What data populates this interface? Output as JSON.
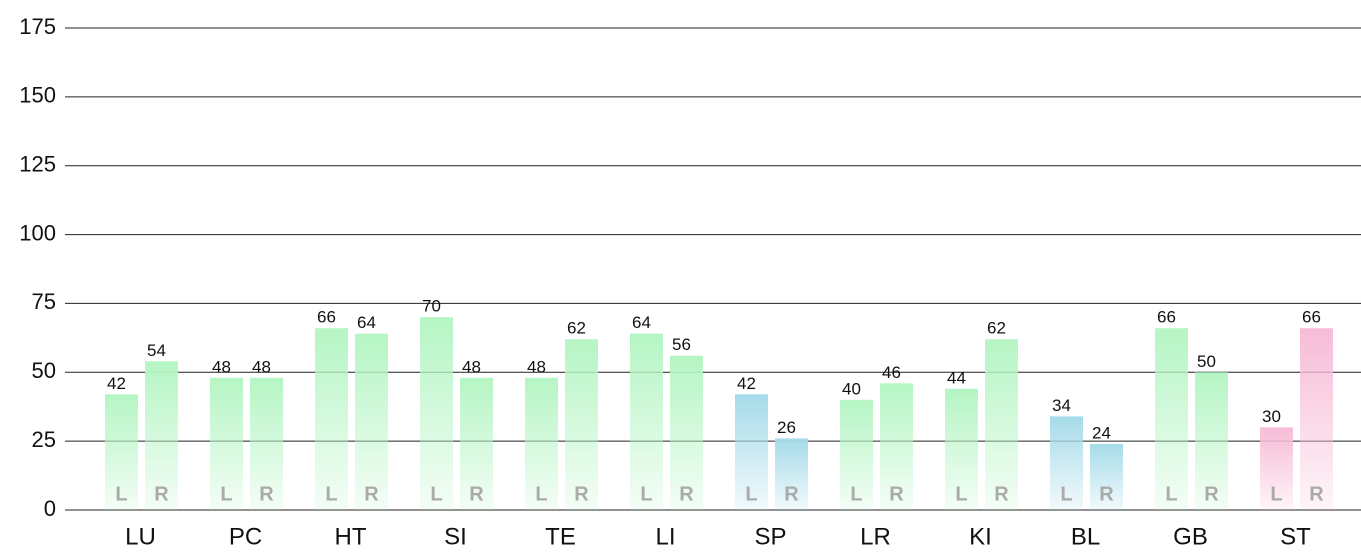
{
  "chart_data": {
    "type": "bar",
    "categories": [
      "LU",
      "PC",
      "HT",
      "SI",
      "TE",
      "LI",
      "SP",
      "LR",
      "KI",
      "BL",
      "GB",
      "ST"
    ],
    "series": [
      {
        "name": "L",
        "values": [
          42,
          48,
          66,
          70,
          48,
          64,
          42,
          40,
          44,
          34,
          66,
          30
        ],
        "colors": [
          "#b5f5c4",
          "#b5f5c4",
          "#b5f5c4",
          "#b5f5c4",
          "#b5f5c4",
          "#b5f5c4",
          "#a6dbe9",
          "#b5f5c4",
          "#b5f5c4",
          "#a6dbe9",
          "#b5f5c4",
          "#f7bcd7"
        ]
      },
      {
        "name": "R",
        "values": [
          54,
          48,
          64,
          48,
          62,
          56,
          26,
          46,
          62,
          24,
          50,
          66
        ],
        "colors": [
          "#b5f5c4",
          "#b5f5c4",
          "#b5f5c4",
          "#b5f5c4",
          "#b5f5c4",
          "#b5f5c4",
          "#a6dbe9",
          "#b5f5c4",
          "#b5f5c4",
          "#a6dbe9",
          "#b5f5c4",
          "#f7bcd7"
        ]
      }
    ],
    "ylim": [
      0,
      175
    ],
    "yticks": [
      0,
      25,
      50,
      75,
      100,
      125,
      150,
      175
    ],
    "grid": true
  }
}
